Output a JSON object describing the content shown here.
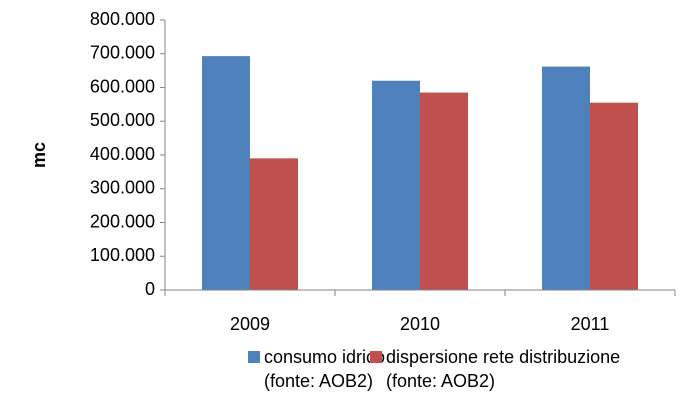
{
  "chart_data": {
    "type": "bar",
    "y_label": "mc",
    "categories": [
      "2009",
      "2010",
      "2011"
    ],
    "series": [
      {
        "name": "consumo idrico\n(fonte: AOB2)",
        "color": "#4f81bd",
        "values": [
          693000,
          620000,
          662000
        ]
      },
      {
        "name": "dispersione rete distribuzione\n(fonte: AOB2)",
        "color": "#c0504d",
        "values": [
          390000,
          585000,
          555000
        ]
      }
    ],
    "ylim": [
      0,
      800000
    ],
    "yticks": [
      0,
      {
        "value": 100000,
        "label": "100.000"
      },
      {
        "value": 200000,
        "label": "200.000"
      },
      {
        "value": 300000,
        "label": "300.000"
      },
      {
        "value": 400000,
        "label": "400.000"
      },
      {
        "value": 500000,
        "label": "500.000"
      },
      {
        "value": 600000,
        "label": "600.000"
      },
      {
        "value": 700000,
        "label": "700.000"
      },
      {
        "value": 800000,
        "label": "800.000"
      }
    ],
    "grid": false,
    "legend": "bottom"
  }
}
